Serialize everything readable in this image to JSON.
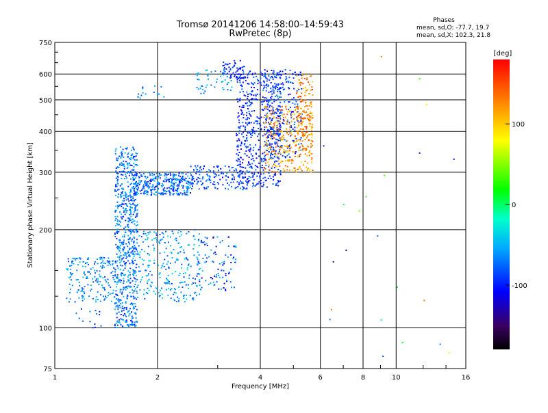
{
  "chart_data": {
    "type": "scatter",
    "title": "Tromsø 20141206 14:58:00–14:59:43",
    "subtitle": "RwPretec (8p)",
    "xlabel": "Frequency [MHz]",
    "ylabel": "Stationary phase Virtual Height [km]",
    "x_scale": "log",
    "y_scale": "log",
    "xlim": [
      1,
      16
    ],
    "ylim": [
      75,
      750
    ],
    "x_ticks": [
      1,
      2,
      4,
      6,
      8,
      10,
      16
    ],
    "x_tick_labels": [
      "1",
      "2",
      "4",
      "6",
      "8",
      "10",
      "16"
    ],
    "y_ticks": [
      75,
      100,
      200,
      300,
      400,
      500,
      600,
      750
    ],
    "y_tick_labels": [
      "75",
      "100",
      "200",
      "300",
      "400",
      "500",
      "600",
      "750"
    ],
    "grid": true,
    "stats": {
      "heading": "Phases",
      "o_line": "mean, sd,O: -77.7, 19.7",
      "x_line": "mean, sd,X: 102.3, 21.8"
    },
    "colorbar": {
      "label": "[deg]",
      "range": [
        -180,
        180
      ],
      "ticks": [
        100,
        0,
        -100
      ],
      "tick_labels": [
        "100",
        "0",
        "-100"
      ],
      "colormap": "rainbow"
    },
    "series": [
      {
        "clusters": [
          {
            "x": [
              1.5,
              1.75
            ],
            "y": [
              100,
              360
            ],
            "c": [
              -100,
              -40
            ],
            "n": 700
          },
          {
            "x": [
              1.08,
              1.5
            ],
            "y": [
              120,
              165
            ],
            "c": [
              -90,
              -40
            ],
            "n": 180
          },
          {
            "x": [
              1.75,
              2.7
            ],
            "y": [
              120,
              200
            ],
            "c": [
              -90,
              -30
            ],
            "n": 260
          },
          {
            "x": [
              2.6,
              3.4
            ],
            "y": [
              130,
              190
            ],
            "c": [
              -130,
              -40
            ],
            "n": 90
          },
          {
            "x": [
              1.7,
              2.5
            ],
            "y": [
              255,
              300
            ],
            "c": [
              -110,
              -40
            ],
            "n": 320
          },
          {
            "x": [
              2.5,
              3.8
            ],
            "y": [
              265,
              315
            ],
            "c": [
              -115,
              -60
            ],
            "n": 160
          },
          {
            "x": [
              3.4,
              4.6
            ],
            "y": [
              270,
              620
            ],
            "c": [
              -120,
              -70
            ],
            "n": 520
          },
          {
            "x": [
              4.1,
              5.3
            ],
            "y": [
              330,
              620
            ],
            "c": [
              -115,
              -65
            ],
            "n": 260
          },
          {
            "x": [
              4.1,
              5.7
            ],
            "y": [
              300,
              480
            ],
            "c": [
              90,
              150
            ],
            "n": 300
          },
          {
            "x": [
              5.1,
              5.7
            ],
            "y": [
              350,
              600
            ],
            "c": [
              95,
              160
            ],
            "n": 140
          },
          {
            "x": [
              2.6,
              3.3
            ],
            "y": [
              520,
              620
            ],
            "c": [
              -80,
              -40
            ],
            "n": 45
          },
          {
            "x": [
              3.1,
              3.6
            ],
            "y": [
              580,
              660
            ],
            "c": [
              -120,
              -80
            ],
            "n": 50
          },
          {
            "x": [
              1.75,
              2.1
            ],
            "y": [
              500,
              560
            ],
            "c": [
              -90,
              -50
            ],
            "n": 14
          },
          {
            "x": [
              1.15,
              1.4
            ],
            "y": [
              100,
              115
            ],
            "c": [
              -100,
              -60
            ],
            "n": 14
          },
          {
            "x": [
              6,
              15
            ],
            "y": [
              80,
              700
            ],
            "c": [
              -140,
              170
            ],
            "n": 22
          }
        ]
      }
    ]
  }
}
